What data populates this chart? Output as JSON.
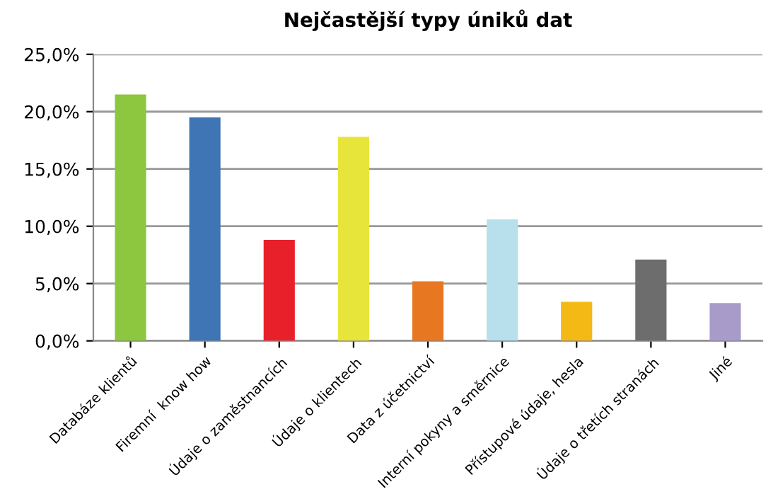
{
  "chart_data": {
    "type": "bar",
    "title": "Nejčastější typy úniků dat",
    "categories": [
      "Databáze klientů",
      "Firemní  know how",
      "Údaje o zaměstnancích",
      "Údaje o klientech",
      "Data z účetnictví",
      "Interní pokyny a směrnice",
      "Přístupové údaje, hesla",
      "Údaje o třetích stranách",
      "Jiné"
    ],
    "values": [
      21.5,
      19.5,
      8.8,
      17.8,
      5.2,
      10.6,
      3.4,
      7.1,
      3.3
    ],
    "colors": [
      "#8dc63f",
      "#3f74b5",
      "#e8202a",
      "#e8e53a",
      "#e87722",
      "#b7e0ec",
      "#f5b915",
      "#6d6d6d",
      "#a99bc9"
    ],
    "ylim": [
      0,
      25
    ],
    "yticks": [
      {
        "value": 0,
        "label": "0,0%"
      },
      {
        "value": 5,
        "label": "5,0%"
      },
      {
        "value": 10,
        "label": "10,0%"
      },
      {
        "value": 15,
        "label": "15,0%"
      },
      {
        "value": 20,
        "label": "20,0%"
      },
      {
        "value": 25,
        "label": "25,0%"
      }
    ],
    "grid": "y",
    "legend": false
  }
}
